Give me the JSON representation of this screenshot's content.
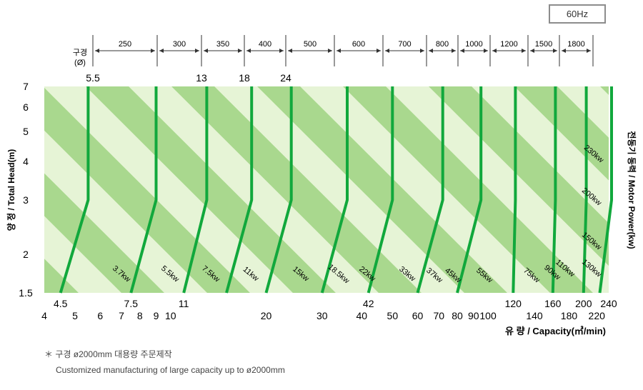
{
  "badge": "60Hz",
  "footnote": {
    "korean": "＊ 구경  ø2000mm  대용량  주문제작",
    "english": "Customized manufacturing of large capacity up to  ø2000mm"
  },
  "colors": {
    "band_dark": "#a9d88e",
    "band_light": "#e6f4d6",
    "curve": "#11a83c"
  },
  "chart_data": {
    "type": "line",
    "ylabel": "양 정 / Total Head(m)",
    "y2label": "전동기 동력 / Motor Power(kw)",
    "xlabel": "유  량 / Capacity(㎥/min)",
    "xscale": "log",
    "yscale": "log",
    "xlim": [
      4,
      240
    ],
    "ylim": [
      1.5,
      7
    ],
    "y_ticks": [
      "1.5",
      "2",
      "3",
      "4",
      "5",
      "6",
      "7"
    ],
    "x_ticks_row1": [
      "4.5",
      "7.5",
      "11",
      "42",
      "120",
      "160",
      "200",
      "240"
    ],
    "x_ticks_row2": [
      "4",
      "5",
      "6",
      "7",
      "8",
      "9",
      "10",
      "20",
      "30",
      "40",
      "50",
      "60",
      "70",
      "80",
      "90",
      "100",
      "140",
      "180",
      "220"
    ],
    "bore_label": "구경\n(Ø)",
    "bore_sizes": [
      "250",
      "300",
      "350",
      "400",
      "500",
      "600",
      "700",
      "800",
      "1000",
      "1200",
      "1500",
      "1800"
    ],
    "top_labels": [
      "5.5",
      "13",
      "18",
      "24"
    ],
    "power_labels": [
      "3.7kw",
      "5.5kw",
      "7.5kw",
      "11kw",
      "15kw",
      "18.5kw",
      "22kw",
      "33kw",
      "37kw",
      "45kw",
      "55kw",
      "75kw",
      "90kw",
      "110kw",
      "130kw",
      "150kw",
      "200kw",
      "230kw"
    ],
    "series": [
      {
        "points": [
          [
            4.5,
            1.5
          ],
          [
            5.5,
            3
          ],
          [
            5.5,
            7
          ]
        ]
      },
      {
        "points": [
          [
            7.5,
            1.5
          ],
          [
            9,
            3
          ],
          [
            9,
            7
          ]
        ]
      },
      {
        "points": [
          [
            11,
            1.5
          ],
          [
            13,
            3
          ],
          [
            13,
            7
          ]
        ]
      },
      {
        "points": [
          [
            15,
            1.5
          ],
          [
            18,
            3
          ],
          [
            18,
            7
          ]
        ]
      },
      {
        "points": [
          [
            20,
            1.5
          ],
          [
            24,
            3
          ],
          [
            24,
            7
          ]
        ]
      },
      {
        "points": [
          [
            30,
            1.5
          ],
          [
            36,
            3
          ],
          [
            36,
            7
          ]
        ]
      },
      {
        "points": [
          [
            42,
            1.5
          ],
          [
            50,
            3
          ],
          [
            50,
            7
          ]
        ]
      },
      {
        "points": [
          [
            60,
            1.5
          ],
          [
            72,
            3
          ],
          [
            72,
            7
          ]
        ]
      },
      {
        "points": [
          [
            80,
            1.5
          ],
          [
            95,
            3
          ],
          [
            95,
            7
          ]
        ]
      },
      {
        "points": [
          [
            120,
            1.5
          ],
          [
            122,
            3
          ],
          [
            122,
            7
          ]
        ]
      },
      {
        "points": [
          [
            160,
            1.5
          ],
          [
            163,
            3
          ],
          [
            163,
            7
          ]
        ]
      },
      {
        "points": [
          [
            200,
            1.5
          ],
          [
            204,
            3
          ],
          [
            204,
            7
          ]
        ]
      },
      {
        "points": [
          [
            225,
            1.5
          ],
          [
            245,
            3
          ],
          [
            245,
            7
          ]
        ]
      }
    ]
  }
}
